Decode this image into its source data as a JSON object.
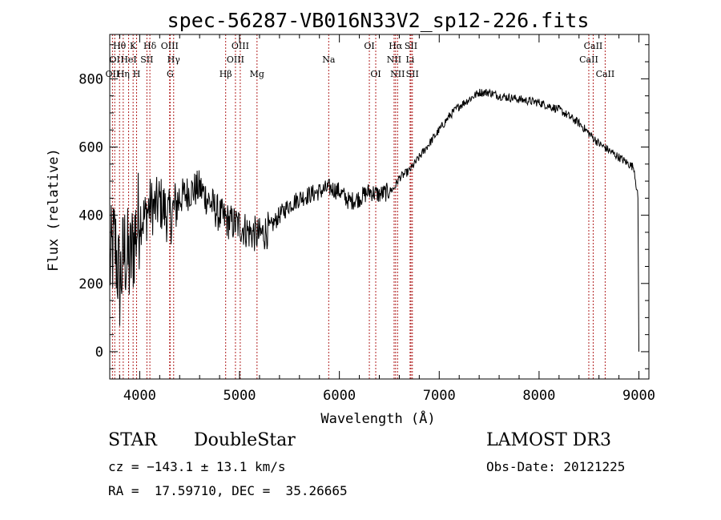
{
  "chart_data": {
    "type": "line",
    "title": "spec-56287-VB016N33V2_sp12-226.fits",
    "xlabel": "Wavelength (Å)",
    "ylabel": "Flux (relative)",
    "xlim": [
      3700,
      9100
    ],
    "ylim": [
      -80,
      930
    ],
    "x_ticks": [
      4000,
      5000,
      6000,
      7000,
      8000,
      9000
    ],
    "x_tick_labels": [
      "4000",
      "5000",
      "6000",
      "7000",
      "8000",
      "9000"
    ],
    "y_ticks": [
      0,
      200,
      400,
      600,
      800
    ],
    "y_tick_labels": [
      "0",
      "200",
      "400",
      "600",
      "800"
    ],
    "series": [
      {
        "name": "spectrum",
        "x": [
          3700,
          3750,
          3800,
          3850,
          3900,
          3950,
          4000,
          4050,
          4100,
          4150,
          4200,
          4300,
          4400,
          4500,
          4600,
          4700,
          4800,
          4900,
          5000,
          5100,
          5200,
          5300,
          5400,
          5500,
          5600,
          5700,
          5800,
          5900,
          6000,
          6100,
          6200,
          6300,
          6400,
          6500,
          6550,
          6600,
          6700,
          6800,
          6900,
          7000,
          7100,
          7200,
          7300,
          7400,
          7500,
          7600,
          7700,
          7800,
          7900,
          8000,
          8100,
          8200,
          8300,
          8400,
          8500,
          8600,
          8700,
          8800,
          8900,
          8950,
          8990,
          9000
        ],
        "y": [
          250,
          320,
          200,
          300,
          250,
          340,
          400,
          390,
          430,
          420,
          440,
          390,
          450,
          470,
          480,
          440,
          400,
          380,
          370,
          350,
          340,
          360,
          400,
          430,
          450,
          460,
          470,
          480,
          470,
          440,
          450,
          470,
          460,
          470,
          480,
          510,
          530,
          570,
          610,
          650,
          690,
          720,
          740,
          760,
          760,
          750,
          745,
          740,
          735,
          730,
          720,
          710,
          690,
          670,
          640,
          610,
          590,
          570,
          550,
          540,
          450,
          0
        ]
      }
    ],
    "line_markers": [
      {
        "label": "OII",
        "x": 3727,
        "row": 3
      },
      {
        "label": "Hθ",
        "x": 3798,
        "row": 1
      },
      {
        "label": "OI",
        "x": 3750,
        "row": 2
      },
      {
        "label": "Hη",
        "x": 3835,
        "row": 3
      },
      {
        "label": "HeI",
        "x": 3889,
        "row": 2
      },
      {
        "label": "K",
        "x": 3934,
        "row": 1
      },
      {
        "label": "H",
        "x": 3969,
        "row": 3
      },
      {
        "label": "SII",
        "x": 4072,
        "row": 2
      },
      {
        "label": "Hδ",
        "x": 4102,
        "row": 1
      },
      {
        "label": "OIII",
        "x": 4300,
        "row": 1
      },
      {
        "label": "Hγ",
        "x": 4340,
        "row": 2
      },
      {
        "label": "G",
        "x": 4305,
        "row": 3
      },
      {
        "label": "Hβ",
        "x": 4861,
        "row": 3
      },
      {
        "label": "OIII",
        "x": 4959,
        "row": 2
      },
      {
        "label": "OIII",
        "x": 5007,
        "row": 1
      },
      {
        "label": "Mg",
        "x": 5175,
        "row": 3
      },
      {
        "label": "Na",
        "x": 5893,
        "row": 2
      },
      {
        "label": "OI",
        "x": 6300,
        "row": 1
      },
      {
        "label": "OI",
        "x": 6364,
        "row": 3
      },
      {
        "label": "Hα",
        "x": 6563,
        "row": 1
      },
      {
        "label": "NII",
        "x": 6548,
        "row": 2
      },
      {
        "label": "NII",
        "x": 6583,
        "row": 3
      },
      {
        "label": "SII",
        "x": 6717,
        "row": 1
      },
      {
        "label": "Li",
        "x": 6708,
        "row": 2
      },
      {
        "label": "SII",
        "x": 6731,
        "row": 3
      },
      {
        "label": "CaII",
        "x": 8498,
        "row": 2
      },
      {
        "label": "CaII",
        "x": 8542,
        "row": 1
      },
      {
        "label": "CaII",
        "x": 8662,
        "row": 3
      }
    ],
    "marker_color": "#b22222",
    "line_color": "#000000"
  },
  "info": {
    "object_class": "STAR",
    "subclass": "DoubleStar",
    "survey": "LAMOST DR3",
    "cz": "cz = −143.1 ± 13.1 km/s",
    "obs_date": "Obs-Date: 20121225",
    "coords": "RA =  17.59710, DEC =  35.26665"
  }
}
